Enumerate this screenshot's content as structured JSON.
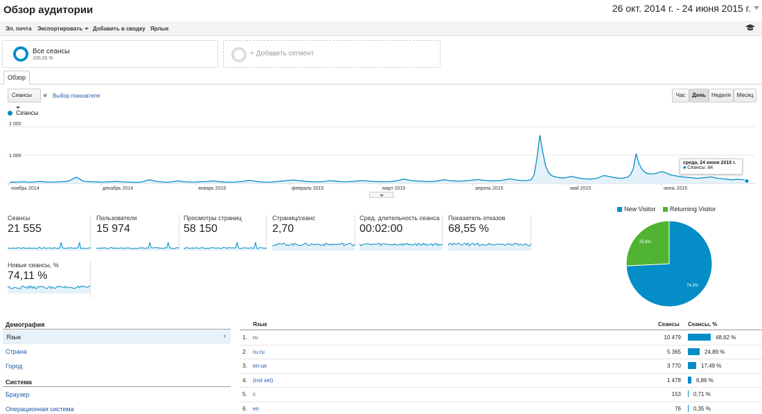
{
  "header": {
    "title": "Обзор аудитории",
    "date_range": "26 окт. 2014 г. - 24 июня 2015 г."
  },
  "toolbar": {
    "email": "Эл. почта",
    "export": "Экспортировать",
    "add_to_dashboard": "Добавить в сводку",
    "shortcut": "Ярлык"
  },
  "segments": {
    "active_name": "Все сеансы",
    "active_pct": "100,00 %",
    "add_label": "+ Добавить сегмент"
  },
  "tabs": {
    "overview": "Обзор"
  },
  "controls": {
    "metric_select": "Сеансы",
    "and": "и",
    "choose_metric": "Выбор показателя",
    "granularity": [
      "Час",
      "День",
      "Неделя",
      "Месяц"
    ],
    "selected_granularity": "День"
  },
  "chart_data": {
    "type": "line",
    "series": [
      {
        "name": "Сеансы",
        "color": "#058dc7",
        "values": [
          40,
          45,
          50,
          48,
          55,
          60,
          50,
          45,
          52,
          60,
          70,
          65,
          55,
          50,
          48,
          46,
          52,
          58,
          62,
          70,
          80,
          120,
          180,
          220,
          160,
          90,
          70,
          65,
          60,
          58,
          55,
          50,
          48,
          52,
          55,
          60,
          65,
          70,
          60,
          55,
          50,
          48,
          45,
          40,
          42,
          50,
          70,
          110,
          130,
          100,
          80,
          60,
          55,
          50,
          45,
          50,
          60,
          80,
          90,
          70,
          60,
          55,
          50,
          48,
          52,
          55,
          60,
          65,
          70,
          80,
          90,
          75,
          60,
          55,
          50,
          48,
          45,
          50,
          55,
          60,
          70,
          90,
          110,
          100,
          80,
          65,
          55,
          50,
          48,
          46,
          50,
          60,
          70,
          80,
          90,
          100,
          110,
          120,
          115,
          100,
          90,
          80,
          70,
          65,
          60,
          58,
          55,
          60,
          70,
          85,
          100,
          90,
          80,
          70,
          60,
          58,
          60,
          65,
          70,
          80,
          90,
          100,
          95,
          85,
          75,
          70,
          65,
          60,
          60,
          62,
          65,
          70,
          80,
          100,
          120,
          150,
          140,
          120,
          100,
          90,
          85,
          80,
          75,
          70,
          65,
          70,
          80,
          90,
          110,
          130,
          120,
          100,
          90,
          85,
          80,
          85,
          90,
          100,
          110,
          120,
          130,
          140,
          120,
          110,
          100,
          95,
          90,
          95,
          100,
          110,
          130,
          150,
          160,
          140,
          120,
          110,
          105,
          100,
          110,
          130,
          300,
          900,
          1700,
          1100,
          600,
          380,
          280,
          240,
          220,
          200,
          190,
          210,
          230,
          250,
          220,
          200,
          180,
          170,
          160,
          150,
          160,
          170,
          200,
          240,
          280,
          260,
          240,
          220,
          200,
          190,
          180,
          200,
          220,
          300,
          500,
          1050,
          700,
          500,
          400,
          350,
          330,
          340,
          360,
          390,
          420,
          380,
          340,
          300,
          280,
          260,
          240,
          230,
          220,
          210,
          200,
          190,
          180,
          190,
          200,
          210,
          220,
          230,
          200,
          180,
          170,
          160,
          150,
          140,
          130,
          140,
          150,
          140,
          130,
          84
        ]
      }
    ],
    "x_tick_labels": [
      "ноябрь 2014",
      "декабрь 2014",
      "январь 2015",
      "февраль 2015",
      "март 2015",
      "апрель 2015",
      "май 2015",
      "июнь 2015"
    ],
    "y_tick_labels": [
      "2 000",
      "1 000"
    ],
    "ylim": [
      0,
      2000
    ],
    "tooltip": {
      "date": "среда, 24 июня 2015 г.",
      "value": "Сеансы: 84"
    },
    "grid": true
  },
  "metrics": [
    {
      "label": "Сеансы",
      "value": "21 555"
    },
    {
      "label": "Пользователи",
      "value": "15 974"
    },
    {
      "label": "Просмотры страниц",
      "value": "58 150"
    },
    {
      "label": "Страниц/сеанс",
      "value": "2,70"
    },
    {
      "label": "Сред. длительность сеанса",
      "value": "00:02:00"
    },
    {
      "label": "Показатель отказов",
      "value": "68,55 %"
    },
    {
      "label": "Новые сеансы, %",
      "value": "74,11 %"
    }
  ],
  "pie": {
    "type": "pie",
    "legend": [
      {
        "name": "New Visitor",
        "color": "#058dc7",
        "value": 74.2,
        "label": "74.2%"
      },
      {
        "name": "Returning Visitor",
        "color": "#50b432",
        "value": 25.8,
        "label": "25.8%"
      }
    ]
  },
  "demographics": {
    "heading": "Демография",
    "items": [
      "Язык",
      "Страна",
      "Город"
    ],
    "system_heading": "Система",
    "system_items": [
      "Браузер",
      "Операционная система"
    ]
  },
  "language_table": {
    "col_language": "Язык",
    "col_sessions": "Сеансы",
    "col_sessions_pct": "Сеансы, %",
    "rows": [
      {
        "idx": "1.",
        "lang": "ru",
        "sessions": "10 479",
        "pct": "48,62 %",
        "frac": 0.4862
      },
      {
        "idx": "2.",
        "lang": "ru-ru",
        "sessions": "5 365",
        "pct": "24,89 %",
        "frac": 0.2489
      },
      {
        "idx": "3.",
        "lang": "en-us",
        "sessions": "3 770",
        "pct": "17,49 %",
        "frac": 0.1749
      },
      {
        "idx": "4.",
        "lang": "(not set)",
        "sessions": "1 478",
        "pct": "6,86 %",
        "frac": 0.0686
      },
      {
        "idx": "5.",
        "lang": "c",
        "sessions": "153",
        "pct": "0,71 %",
        "frac": 0.0071
      },
      {
        "idx": "6.",
        "lang": "en",
        "sessions": "76",
        "pct": "0,35 %",
        "frac": 0.0035
      }
    ]
  }
}
